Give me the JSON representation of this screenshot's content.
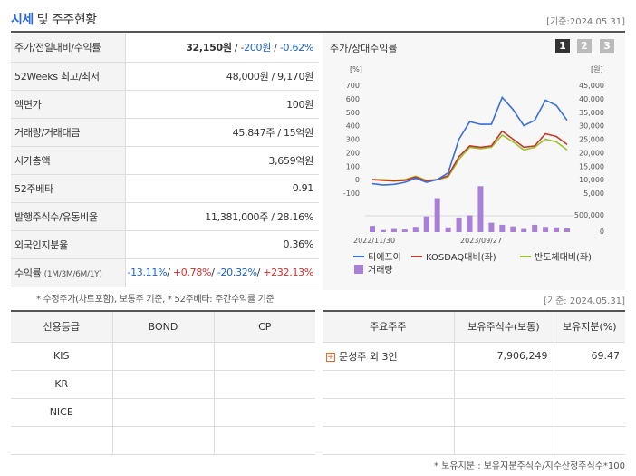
{
  "header": {
    "title_main": "시세",
    "title_rest": " 및 주주현황",
    "date": "[기준:2024.05.31]"
  },
  "quote_rows": [
    {
      "key": "주가/전일대비/수익률",
      "price": "32,150원",
      "sep1": " / ",
      "change": "-200원",
      "sep2": " / ",
      "pct": "-0.62%"
    },
    {
      "key": "52Weeks 최고/최저",
      "value": "48,000원 / 9,170원"
    },
    {
      "key": "액면가",
      "value": "100원"
    },
    {
      "key": "거래량/거래대금",
      "value": "45,847주 / 15억원"
    },
    {
      "key": "시가총액",
      "value": "3,659억원"
    },
    {
      "key": "52주베타",
      "value": "0.91"
    },
    {
      "key": "발행주식수/유동비율",
      "value": "11,381,000주 / 28.16%"
    },
    {
      "key": "외국인지분율",
      "value": "0.36%"
    }
  ],
  "returns_row": {
    "key": "수익률",
    "key_sub": "(1M/3M/6M/1Y)",
    "r1": "-13.11%",
    "r2": "+0.78%",
    "r3": "-20.32%",
    "r4": "+232.13%",
    "sep": "/ "
  },
  "footnote1": "* 수정주가(차트포함), 보통주 기준, * 52주베타: 주간수익률 기준",
  "chart": {
    "title": "주가/상대수익률",
    "pages": [
      "1",
      "2",
      "3"
    ],
    "left_unit": "[%]",
    "right_unit": "[원]",
    "left_ticks": [
      "700",
      "600",
      "500",
      "400",
      "300",
      "200",
      "100",
      "0",
      "-100"
    ],
    "right_ticks": [
      "45,000",
      "40,000",
      "35,000",
      "30,000",
      "25,000",
      "20,000",
      "15,000",
      "10,000",
      "5,000"
    ],
    "vol_tick": "500,000",
    "vol_zero": "0",
    "x_labels": [
      "2022/11/30",
      "2023/09/27"
    ]
  },
  "chart_data": {
    "type": "line",
    "x": [
      "2022-11",
      "2022-12",
      "2023-01",
      "2023-02",
      "2023-03",
      "2023-04",
      "2023-05",
      "2023-06",
      "2023-07",
      "2023-08",
      "2023-09",
      "2023-10",
      "2023-11",
      "2023-12",
      "2024-01",
      "2024-02",
      "2024-03",
      "2024-04",
      "2024-05"
    ],
    "series": [
      {
        "name": "티에프이",
        "axis": "left",
        "color": "#3a6fd8",
        "values": [
          -30,
          -40,
          -35,
          -20,
          10,
          -20,
          0,
          50,
          300,
          430,
          410,
          410,
          610,
          520,
          400,
          440,
          590,
          550,
          440
        ]
      },
      {
        "name": "KOSDAQ대비(좌)",
        "axis": "left",
        "color": "#c0392b",
        "values": [
          0,
          -5,
          -10,
          -5,
          20,
          -10,
          0,
          30,
          170,
          250,
          240,
          250,
          360,
          300,
          240,
          250,
          340,
          320,
          260
        ]
      },
      {
        "name": "반도체대비(좌)",
        "axis": "left",
        "color": "#9ac12e",
        "values": [
          0,
          0,
          -5,
          0,
          25,
          -5,
          0,
          20,
          150,
          240,
          230,
          240,
          330,
          280,
          220,
          240,
          300,
          280,
          220
        ]
      },
      {
        "name": "거래량",
        "axis": "volume",
        "color": "#a97fd8",
        "values": [
          120000,
          40000,
          60000,
          50000,
          100000,
          300000,
          650000,
          90000,
          280000,
          320000,
          880000,
          180000,
          140000,
          110000,
          60000,
          140000,
          100000,
          90000,
          70000
        ]
      }
    ],
    "ylim_left": [
      -100,
      700
    ],
    "ylim_right": [
      5000,
      45000
    ],
    "vol_max": 1000000,
    "legend": [
      "티에프이",
      "KOSDAQ대비(좌)",
      "반도체대비(좌)",
      "거래량"
    ]
  },
  "date2": "[기준: 2024.05.31]",
  "credit": {
    "headers": [
      "신용등급",
      "BOND",
      "CP"
    ],
    "rows": [
      [
        "KIS",
        "",
        ""
      ],
      [
        "KR",
        "",
        ""
      ],
      [
        "NICE",
        "",
        ""
      ],
      [
        "",
        "",
        ""
      ]
    ]
  },
  "holders": {
    "headers": [
      "주요주주",
      "보유주식수(보통)",
      "보유지분(%)"
    ],
    "rows": [
      {
        "name": "문성주 외 3인",
        "shares": "7,906,249",
        "pct": "69.47"
      },
      {
        "name": "",
        "shares": "",
        "pct": ""
      },
      {
        "name": "",
        "shares": "",
        "pct": ""
      },
      {
        "name": "",
        "shares": "",
        "pct": ""
      }
    ]
  },
  "footnote2": "* 보유지분 : 보유지분주식수/지수산정주식수*100"
}
